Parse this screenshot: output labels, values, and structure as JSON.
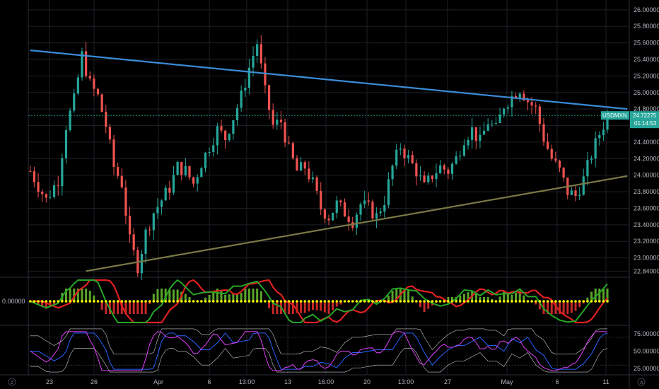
{
  "chart_data": [
    {
      "type": "candlestick",
      "symbol": "USDMXN",
      "last_price": "24.72275",
      "countdown": "01:14:53",
      "ylim": [
        22.8,
        26.05
      ],
      "y_ticks": [
        "26.00000",
        "25.80000",
        "25.60000",
        "25.40000",
        "25.20000",
        "25.00000",
        "24.80000",
        "24.60000",
        "24.40000",
        "24.20000",
        "24.00000",
        "23.80000",
        "23.60000",
        "23.40000",
        "23.20000",
        "23.00000",
        "22.84000"
      ],
      "y_tick_values": [
        26.0,
        25.8,
        25.6,
        25.4,
        25.2,
        25.0,
        24.8,
        24.6,
        24.4,
        24.2,
        24.0,
        23.8,
        23.6,
        23.4,
        23.2,
        23.0,
        22.84
      ],
      "x_ticks": [
        "23",
        "26",
        "Apr",
        "6",
        "13:00",
        "13",
        "16:00",
        "20",
        "13:00",
        "27",
        "May",
        "6",
        "11"
      ],
      "price_path": [
        [
          0,
          24.05
        ],
        [
          4,
          23.7
        ],
        [
          7,
          23.95
        ],
        [
          9,
          24.6
        ],
        [
          11,
          24.9
        ],
        [
          13,
          25.45
        ],
        [
          15,
          25.1
        ],
        [
          17,
          24.95
        ],
        [
          19,
          24.6
        ],
        [
          21,
          24.1
        ],
        [
          23,
          23.9
        ],
        [
          25,
          23.2
        ],
        [
          27,
          22.9
        ],
        [
          29,
          23.3
        ],
        [
          31,
          23.55
        ],
        [
          33,
          23.7
        ],
        [
          35,
          23.85
        ],
        [
          37,
          24.1
        ],
        [
          39,
          24.05
        ],
        [
          41,
          23.9
        ],
        [
          43,
          24.15
        ],
        [
          45,
          24.35
        ],
        [
          47,
          24.55
        ],
        [
          49,
          24.45
        ],
        [
          51,
          24.7
        ],
        [
          53,
          24.95
        ],
        [
          55,
          25.3
        ],
        [
          57,
          25.6
        ],
        [
          59,
          25.0
        ],
        [
          61,
          24.6
        ],
        [
          63,
          24.65
        ],
        [
          65,
          24.3
        ],
        [
          67,
          24.05
        ],
        [
          69,
          24.1
        ],
        [
          71,
          23.9
        ],
        [
          73,
          23.6
        ],
        [
          75,
          23.5
        ],
        [
          77,
          23.65
        ],
        [
          79,
          23.55
        ],
        [
          81,
          23.45
        ],
        [
          83,
          23.65
        ],
        [
          85,
          23.6
        ],
        [
          87,
          23.5
        ],
        [
          89,
          23.7
        ],
        [
          91,
          24.1
        ],
        [
          93,
          24.35
        ],
        [
          95,
          24.2
        ],
        [
          97,
          24.05
        ],
        [
          99,
          23.85
        ],
        [
          101,
          24.0
        ],
        [
          103,
          24.1
        ],
        [
          105,
          24.05
        ],
        [
          107,
          24.2
        ],
        [
          109,
          24.45
        ],
        [
          111,
          24.55
        ],
        [
          113,
          24.4
        ],
        [
          115,
          24.65
        ],
        [
          117,
          24.55
        ],
        [
          119,
          24.85
        ],
        [
          121,
          24.95
        ],
        [
          123,
          25.05
        ],
        [
          125,
          24.9
        ],
        [
          127,
          24.8
        ],
        [
          129,
          24.45
        ],
        [
          131,
          24.2
        ],
        [
          133,
          24.05
        ],
        [
          135,
          23.8
        ],
        [
          137,
          23.75
        ],
        [
          139,
          23.95
        ],
        [
          141,
          24.25
        ],
        [
          143,
          24.5
        ],
        [
          145,
          24.72
        ]
      ],
      "trendlines": [
        {
          "name": "upper",
          "start": [
            0,
            25.51
          ],
          "end": [
            150,
            24.8
          ],
          "color": "#3a8bd6"
        },
        {
          "name": "lower",
          "start": [
            14,
            22.84
          ],
          "end": [
            150,
            23.99
          ],
          "color": "#7a7845"
        }
      ],
      "colors": {
        "up": "#26a69a",
        "down": "#ef5350",
        "last_tag": "#26a69a",
        "grid": "#1c1f26"
      }
    },
    {
      "type": "oscillator",
      "y_ticks": [
        "0.00000"
      ],
      "zero_line_color": "#ffff00",
      "fast_line_color": "#26a626",
      "slow_line_color": "#e02020",
      "histogram_pos_color": "#5aa52a",
      "histogram_neg_color": "#c62828"
    },
    {
      "type": "line",
      "y_ticks": [
        "75.00000",
        "50.00000",
        "25.00000"
      ],
      "y_tick_values": [
        75,
        50,
        25
      ],
      "ylim": [
        18,
        85
      ],
      "series_colors": [
        "#7c4dff",
        "#2962ff",
        "#e040fb",
        "#c8c8c8"
      ]
    }
  ],
  "toolbar": {
    "left_icon": "Z",
    "right_icon": "A"
  }
}
